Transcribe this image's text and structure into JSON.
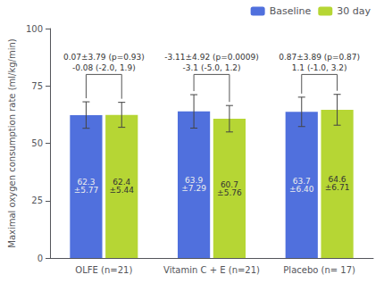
{
  "chart_data": {
    "type": "bar",
    "categories": [
      "OLFE (n=21)",
      "Vitamin C + E (n=21)",
      "Placebo (n= 17)"
    ],
    "series": [
      {
        "name": "Baseline",
        "values": [
          62.3,
          63.9,
          63.7
        ],
        "errors": [
          5.77,
          7.29,
          6.4
        ],
        "value_labels": [
          "62.3\n±5.77",
          "63.9\n±7.29",
          "63.7\n±6.40"
        ]
      },
      {
        "name": "30 day",
        "values": [
          62.4,
          60.7,
          64.6
        ],
        "errors": [
          5.44,
          5.76,
          6.71
        ],
        "value_labels": [
          "62.4\n±5.44",
          "60.7\n±5.76",
          "64.6\n±6.71"
        ]
      }
    ],
    "annotations": [
      {
        "category": "OLFE (n=21)",
        "y": 80,
        "lines": [
          "-0.08 (-2.0, 1.9)",
          "0.07±3.79 (p=0.93)"
        ]
      },
      {
        "category": "Vitamin C + E (n=21)",
        "y": 80,
        "lines": [
          "-3.1 (-5.0, 1.2)",
          "-3.11±4.92 (p=0.0009)"
        ]
      },
      {
        "category": "Placebo (n= 17)",
        "y": 80,
        "lines": [
          "1.1 (-1.0, 3.2)",
          "0.87±3.89 (p=0.87)"
        ]
      }
    ],
    "ylabel": "Maximal oxygen consumption rate (ml/kg/min)",
    "ylim": [
      0,
      100
    ],
    "yticks": [
      0,
      25,
      50,
      75,
      100
    ],
    "grid": false,
    "legend": "upper right",
    "data_labels": true
  }
}
